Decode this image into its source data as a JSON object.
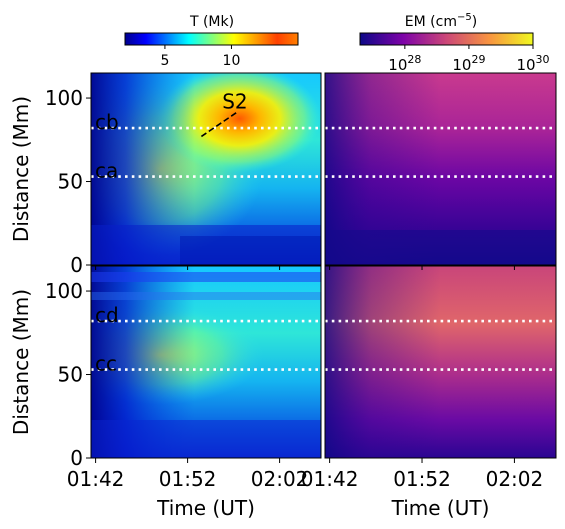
{
  "chart_data": {
    "type": "heatmap",
    "layout": "2x2 panels sharing axes",
    "shared_axes": {
      "xlabel": "Time (UT)",
      "ylabel": "Distance (Mm)",
      "x_ticks": [
        "01:42",
        "01:52",
        "02:02"
      ],
      "x_tick_minutes": [
        102,
        112,
        122
      ],
      "xlim_minutes": [
        101.5,
        126.5
      ],
      "xlim_utc": [
        "01:41:30",
        "02:06:30"
      ],
      "y_ticks": [
        0,
        50,
        100
      ],
      "ylim": [
        0,
        115
      ]
    },
    "colorbars": [
      {
        "label": "T (Mk)",
        "colormap": "jet",
        "range": [
          2,
          15
        ],
        "ticks": [
          5,
          10
        ],
        "tick_labels": [
          "5",
          "10"
        ]
      },
      {
        "label": "EM (cm",
        "label_exponent": "−5",
        "label_close": ")",
        "colormap": "plasma",
        "scale": "log",
        "range_log10": [
          27.3,
          30
        ],
        "tick_base": "10",
        "ticks_log10": [
          28,
          29,
          30
        ],
        "tick_exponents": [
          "28",
          "29",
          "30"
        ]
      }
    ],
    "panels": [
      {
        "id": "top-left",
        "quantity": "T",
        "cuts": [
          {
            "label": "cb",
            "distance_mm": 82
          },
          {
            "label": "ca",
            "distance_mm": 53
          }
        ],
        "slit": {
          "label": "S2",
          "from": {
            "t_min": 113.5,
            "y_mm": 77
          },
          "to": {
            "t_min": 117.5,
            "y_mm": 92
          }
        }
      },
      {
        "id": "top-right",
        "quantity": "EM",
        "cuts": [
          {
            "distance_mm": 82
          },
          {
            "distance_mm": 53
          }
        ]
      },
      {
        "id": "bottom-left",
        "quantity": "T",
        "cuts": [
          {
            "label": "cd",
            "distance_mm": 82
          },
          {
            "label": "cc",
            "distance_mm": 53
          }
        ]
      },
      {
        "id": "bottom-right",
        "quantity": "EM",
        "cuts": [
          {
            "distance_mm": 82
          },
          {
            "distance_mm": 53
          }
        ]
      }
    ]
  }
}
